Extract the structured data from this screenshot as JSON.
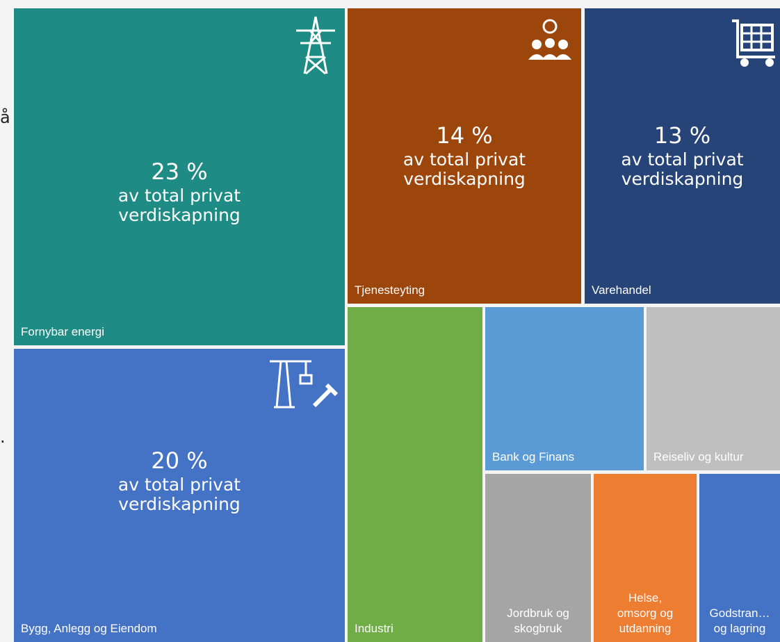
{
  "margin": {
    "fragments": [
      "å",
      "."
    ]
  },
  "tiles": [
    {
      "label": [
        "Fornybar energi"
      ],
      "percent": "23 %",
      "caption": [
        "av total privat",
        "verdiskapning"
      ]
    },
    {
      "label": [
        "Bygg, Anlegg og Eiendom"
      ],
      "percent": "20 %",
      "caption": [
        "av total privat",
        "verdiskapning"
      ]
    },
    {
      "label": [
        "Tjenesteyting"
      ],
      "percent": "14 %",
      "caption": [
        "av total privat",
        "verdiskapning"
      ]
    },
    {
      "label": [
        "Varehandel"
      ],
      "percent": "13 %",
      "caption": [
        "av total privat",
        "verdiskapning"
      ]
    },
    {
      "label": [
        "Industri"
      ]
    },
    {
      "label": [
        "Bank og Finans"
      ]
    },
    {
      "label": [
        "Reiseliv og kultur"
      ]
    },
    {
      "label": [
        "Jordbruk og",
        "skogbruk"
      ]
    },
    {
      "label": [
        "Helse,",
        "omsorg og",
        "utdanning"
      ]
    },
    {
      "label": [
        "Godstran…",
        "og lagring"
      ]
    }
  ]
}
